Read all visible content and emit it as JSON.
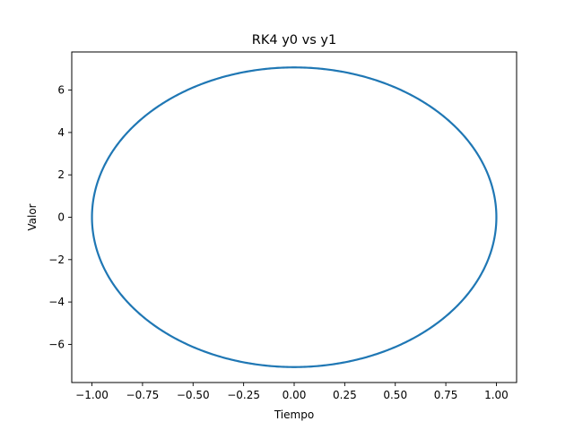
{
  "chart_data": {
    "type": "line",
    "title": "RK4 y0 vs y1",
    "xlabel": "Tiempo",
    "ylabel": "Valor",
    "xlim": [
      -1.1,
      1.1
    ],
    "ylim": [
      -7.8,
      7.8
    ],
    "x_ticks": [
      -1.0,
      -0.75,
      -0.5,
      -0.25,
      0.0,
      0.25,
      0.5,
      0.75,
      1.0
    ],
    "x_tick_labels": [
      "−1.00",
      "−0.75",
      "−0.50",
      "−0.25",
      "0.00",
      "0.25",
      "0.50",
      "0.75",
      "1.00"
    ],
    "y_ticks": [
      -6,
      -4,
      -2,
      0,
      2,
      4,
      6
    ],
    "y_tick_labels": [
      "−6",
      "−4",
      "−2",
      "0",
      "2",
      "4",
      "6"
    ],
    "grid": false,
    "series": [
      {
        "color": "#1f77b4",
        "shape": "closed ellipse",
        "center": [
          0.0,
          0.0
        ],
        "x_extent": [
          -1.0,
          1.0
        ],
        "y_extent": [
          -7.07,
          7.07
        ],
        "x": [
          1.0,
          0.9659,
          0.866,
          0.7071,
          0.5,
          0.2588,
          0.0,
          -0.2588,
          -0.5,
          -0.7071,
          -0.866,
          -0.9659,
          -1.0,
          -0.9659,
          -0.866,
          -0.7071,
          -0.5,
          -0.2588,
          0.0,
          0.2588,
          0.5,
          0.7071,
          0.866,
          0.9659,
          1.0
        ],
        "y": [
          0.0,
          1.83,
          3.535,
          5.0,
          6.123,
          6.829,
          7.07,
          6.829,
          6.123,
          5.0,
          3.535,
          1.83,
          0.0,
          -1.83,
          -3.535,
          -5.0,
          -6.123,
          -6.829,
          -7.07,
          -6.829,
          -6.123,
          -5.0,
          -3.535,
          -1.83,
          0.0
        ]
      }
    ]
  }
}
